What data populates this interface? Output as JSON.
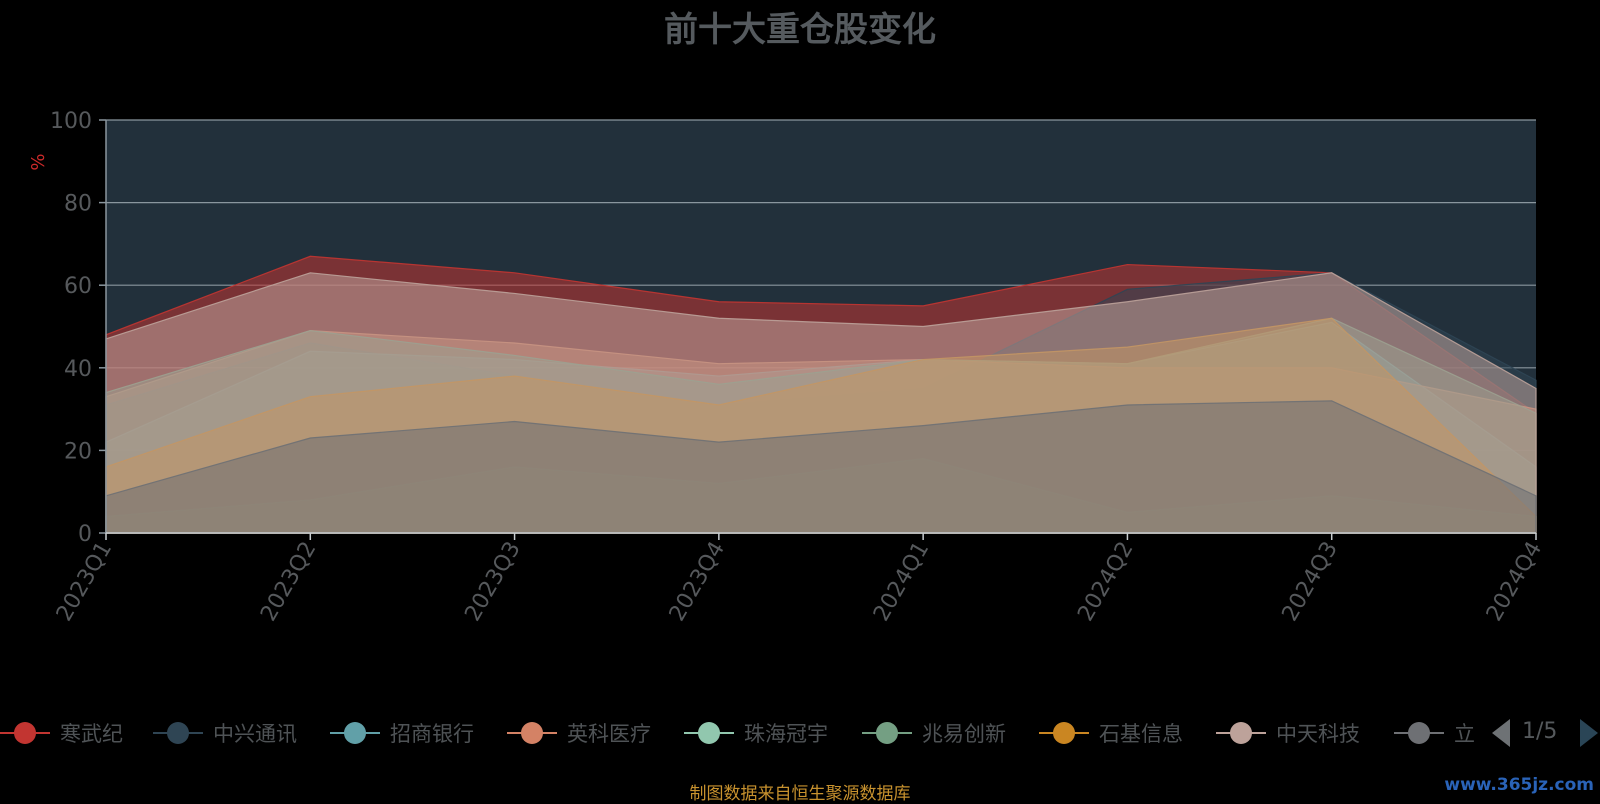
{
  "chart_data": {
    "type": "area",
    "title": "前十大重仓股变化",
    "ylabel": "%",
    "ylim": [
      0,
      100
    ],
    "y_ticks": [
      0,
      20,
      40,
      60,
      80,
      100
    ],
    "grid": true,
    "stacked": false,
    "categories": [
      "2023Q1",
      "2023Q2",
      "2023Q3",
      "2023Q4",
      "2024Q1",
      "2024Q2",
      "2024Q3",
      "2024Q4"
    ],
    "colors": {
      "plot_background": "#22303b",
      "grid": "#8a969e",
      "title": "#555a5e",
      "ylabel": "#cc2a2a"
    },
    "series": [
      {
        "name": "寒武纪",
        "color": "#c23531",
        "values": [
          48,
          67,
          63,
          56,
          55,
          65,
          63,
          29
        ]
      },
      {
        "name": "中兴通讯",
        "color": "#2f4554",
        "values": [
          31,
          46,
          38,
          31,
          35,
          59,
          63,
          37
        ]
      },
      {
        "name": "招商银行",
        "color": "#61a0a8",
        "values": [
          22,
          44,
          42,
          38,
          42,
          41,
          51,
          16
        ]
      },
      {
        "name": "英科医疗",
        "color": "#d48265",
        "values": [
          33,
          49,
          46,
          41,
          42,
          40,
          40,
          30
        ]
      },
      {
        "name": "珠海冠宇",
        "color": "#91c7ae",
        "values": [
          4,
          8,
          16,
          12,
          18,
          5,
          9,
          4
        ]
      },
      {
        "name": "兆易创新",
        "color": "#749f83",
        "values": [
          34,
          49,
          43,
          36,
          42,
          41,
          52,
          29
        ]
      },
      {
        "name": "石基信息",
        "color": "#ca8622",
        "values": [
          16,
          33,
          38,
          31,
          42,
          45,
          52,
          4
        ]
      },
      {
        "name": "中天科技",
        "color": "#bda29a",
        "values": [
          47,
          63,
          58,
          52,
          50,
          56,
          63,
          35
        ]
      },
      {
        "name": "立讯精密",
        "color": "#6e7074",
        "values": [
          9,
          23,
          27,
          22,
          26,
          31,
          32,
          9
        ]
      }
    ]
  },
  "legend": {
    "items": [
      "寒武纪",
      "中兴通讯",
      "招商银行",
      "英科医疗",
      "珠海冠宇",
      "兆易创新",
      "石基信息",
      "中天科技",
      "立讯"
    ],
    "pager": "1/5"
  },
  "footer": {
    "source_note": "制图数据来自恒生聚源数据库",
    "watermark": "www.365jz.com"
  }
}
